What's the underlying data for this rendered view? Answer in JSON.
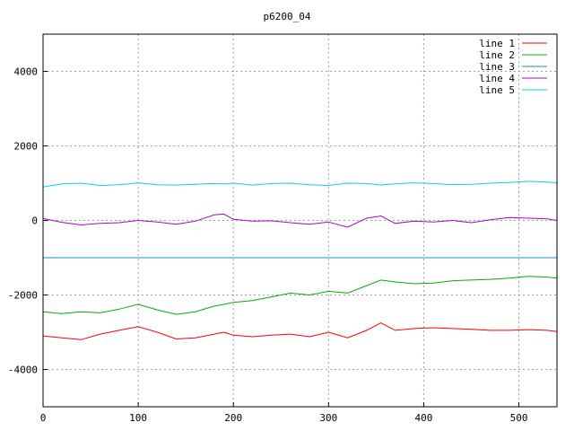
{
  "chart_data": {
    "type": "line",
    "title": "p6200_04",
    "xlabel": "",
    "ylabel": "",
    "xlim": [
      0,
      540
    ],
    "ylim": [
      -5000,
      5000
    ],
    "xticks": [
      0,
      100,
      200,
      300,
      400,
      500
    ],
    "yticks": [
      -4000,
      -2000,
      0,
      2000,
      4000
    ],
    "grid": true,
    "legend_position": "top-right",
    "x": [
      0,
      20,
      40,
      60,
      80,
      100,
      120,
      140,
      160,
      180,
      190,
      200,
      220,
      240,
      260,
      280,
      300,
      320,
      340,
      355,
      370,
      390,
      410,
      430,
      450,
      470,
      490,
      510,
      530,
      540
    ],
    "series": [
      {
        "name": "line 1",
        "color": "#ff0000",
        "values": [
          -3100,
          -3150,
          -3200,
          -3050,
          -2950,
          -2850,
          -3000,
          -3180,
          -3150,
          -3050,
          -3000,
          -3080,
          -3120,
          -3080,
          -3050,
          -3120,
          -3000,
          -3150,
          -2950,
          -2750,
          -2950,
          -2900,
          -2880,
          -2900,
          -2920,
          -2950,
          -2950,
          -2930,
          -2950,
          -2980
        ]
      },
      {
        "name": "line 2",
        "color": "#00b000",
        "values": [
          -2450,
          -2500,
          -2450,
          -2480,
          -2380,
          -2250,
          -2400,
          -2520,
          -2450,
          -2300,
          -2250,
          -2200,
          -2150,
          -2050,
          -1950,
          -2000,
          -1900,
          -1950,
          -1750,
          -1600,
          -1650,
          -1700,
          -1680,
          -1620,
          -1600,
          -1580,
          -1550,
          -1500,
          -1520,
          -1550
        ]
      },
      {
        "name": "line 3",
        "color": "#1a8fc8",
        "values": [
          -1000,
          -1000,
          -1000,
          -1000,
          -1000,
          -1000,
          -1000,
          -1000,
          -1000,
          -1000,
          -1000,
          -1000,
          -1000,
          -1000,
          -1000,
          -1000,
          -1000,
          -1000,
          -1000,
          -1000,
          -1000,
          -1000,
          -1000,
          -1000,
          -1000,
          -1000,
          -1000,
          -1000,
          -1000,
          -1000
        ]
      },
      {
        "name": "line 4",
        "color": "#b000d0",
        "values": [
          50,
          -50,
          -120,
          -80,
          -60,
          0,
          -40,
          -100,
          -20,
          150,
          170,
          30,
          -20,
          -10,
          -60,
          -100,
          -40,
          -180,
          60,
          120,
          -80,
          -20,
          -40,
          0,
          -60,
          20,
          80,
          60,
          40,
          0
        ]
      },
      {
        "name": "line 5",
        "color": "#00d8d8",
        "values": [
          900,
          980,
          1000,
          940,
          960,
          1010,
          960,
          950,
          970,
          990,
          980,
          1000,
          950,
          990,
          1000,
          960,
          940,
          1000,
          990,
          950,
          980,
          1010,
          990,
          960,
          970,
          1000,
          1020,
          1050,
          1030,
          1000
        ]
      }
    ]
  }
}
